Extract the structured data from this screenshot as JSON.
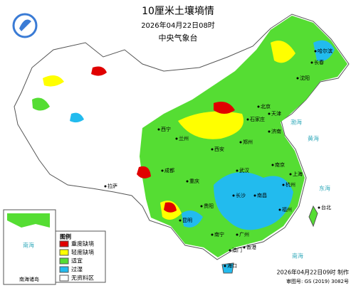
{
  "header": {
    "title": "10厘米土壤墒情",
    "date": "2026年04月22日08时",
    "issuer": "中央气象台"
  },
  "legend": {
    "title": "图例",
    "items": [
      {
        "label": "重度缺墒",
        "color": "#e00000"
      },
      {
        "label": "轻度缺墒",
        "color": "#ffff00"
      },
      {
        "label": "适宜",
        "color": "#55dd33"
      },
      {
        "label": "过湿",
        "color": "#22bbee"
      },
      {
        "label": "无资料区",
        "color": "#ffffff"
      }
    ]
  },
  "inset": {
    "label": "南海诸岛",
    "sea": "南海"
  },
  "places": [
    {
      "label": "哈尔滨"
    },
    {
      "label": "长春"
    },
    {
      "label": "沈阳"
    },
    {
      "label": "北京"
    },
    {
      "label": "天津"
    },
    {
      "label": "石家庄"
    },
    {
      "label": "济南"
    },
    {
      "label": "郑州"
    },
    {
      "label": "西安"
    },
    {
      "label": "兰州"
    },
    {
      "label": "西宁"
    },
    {
      "label": "拉萨"
    },
    {
      "label": "成都"
    },
    {
      "label": "重庆"
    },
    {
      "label": "武汉"
    },
    {
      "label": "南京"
    },
    {
      "label": "上海"
    },
    {
      "label": "杭州"
    },
    {
      "label": "长沙"
    },
    {
      "label": "南昌"
    },
    {
      "label": "福州"
    },
    {
      "label": "台北"
    },
    {
      "label": "昆明"
    },
    {
      "label": "贵阳"
    },
    {
      "label": "南宁"
    },
    {
      "label": "广州"
    },
    {
      "label": "香港"
    },
    {
      "label": "澳门"
    },
    {
      "label": "海口"
    }
  ],
  "seas": [
    {
      "label": "渤海"
    },
    {
      "label": "黄海"
    },
    {
      "label": "东海"
    },
    {
      "label": "南海"
    }
  ],
  "footer": {
    "made": "2026年04月22日09时 制作",
    "approval": "审图号: GS (2019) 3082号"
  }
}
